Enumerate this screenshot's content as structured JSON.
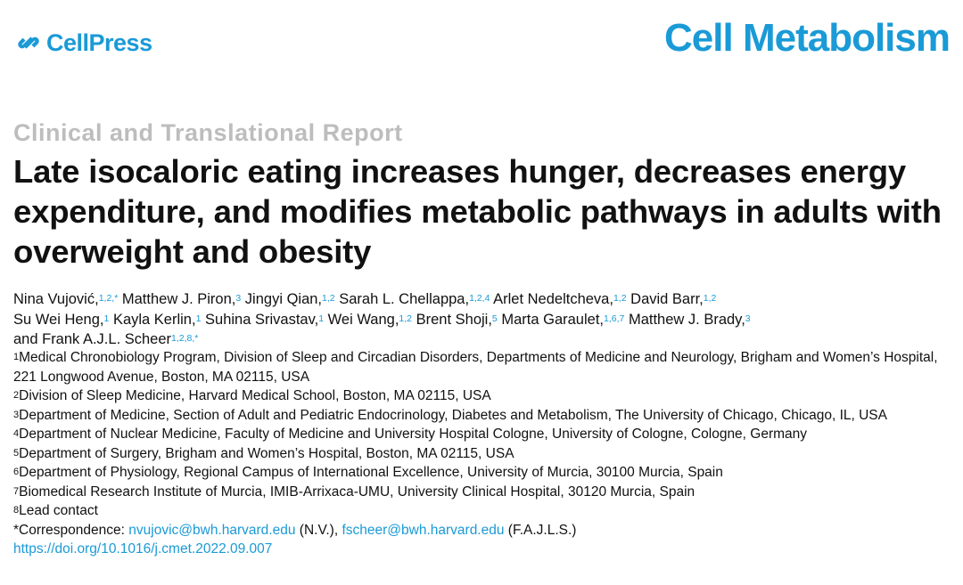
{
  "header": {
    "publisher": "CellPress",
    "journal": "Cell Metabolism",
    "brand_color": "#1a9ad6"
  },
  "article": {
    "category": "Clinical and Translational Report",
    "title": "Late isocaloric eating increases hunger, decreases energy expenditure, and modifies metabolic pathways in adults with overweight and obesity"
  },
  "authors": [
    {
      "name": "Nina Vujović,",
      "sup": "1,2,*"
    },
    {
      "name": "Matthew J. Piron,",
      "sup": "3"
    },
    {
      "name": "Jingyi Qian,",
      "sup": "1,2"
    },
    {
      "name": "Sarah L. Chellappa,",
      "sup": "1,2,4"
    },
    {
      "name": "Arlet Nedeltcheva,",
      "sup": "1,2"
    },
    {
      "name": "David Barr,",
      "sup": "1,2"
    },
    {
      "name": "Su Wei Heng,",
      "sup": "1"
    },
    {
      "name": "Kayla Kerlin,",
      "sup": "1"
    },
    {
      "name": "Suhina Srivastav,",
      "sup": "1"
    },
    {
      "name": "Wei Wang,",
      "sup": "1,2"
    },
    {
      "name": "Brent Shoji,",
      "sup": "5"
    },
    {
      "name": "Marta Garaulet,",
      "sup": "1,6,7"
    },
    {
      "name": "Matthew J. Brady,",
      "sup": "3"
    },
    {
      "name": "and Frank A.J.L. Scheer",
      "sup": "1,2,8,*"
    }
  ],
  "affiliations": [
    {
      "num": "1",
      "text": "Medical Chronobiology Program, Division of Sleep and Circadian Disorders, Departments of Medicine and Neurology, Brigham and Women’s Hospital, 221 Longwood Avenue, Boston, MA 02115, USA"
    },
    {
      "num": "2",
      "text": "Division of Sleep Medicine, Harvard Medical School, Boston, MA 02115, USA"
    },
    {
      "num": "3",
      "text": "Department of Medicine, Section of Adult and Pediatric Endocrinology, Diabetes and Metabolism, The University of Chicago, Chicago, IL, USA"
    },
    {
      "num": "4",
      "text": "Department of Nuclear Medicine, Faculty of Medicine and University Hospital Cologne, University of Cologne, Cologne, Germany"
    },
    {
      "num": "5",
      "text": "Department of Surgery, Brigham and Women’s Hospital, Boston, MA 02115, USA"
    },
    {
      "num": "6",
      "text": "Department of Physiology, Regional Campus of International Excellence, University of Murcia, 30100 Murcia, Spain"
    },
    {
      "num": "7",
      "text": "Biomedical Research Institute of Murcia, IMIB-Arrixaca-UMU, University Clinical Hospital, 30120 Murcia, Spain"
    },
    {
      "num": "8",
      "text": "Lead contact"
    }
  ],
  "correspondence": {
    "label": "*Correspondence:",
    "email1": "nvujovic@bwh.harvard.edu",
    "initials1": "(N.V.),",
    "email2": "fscheer@bwh.harvard.edu",
    "initials2": "(F.A.J.L.S.)"
  },
  "doi": "https://doi.org/10.1016/j.cmet.2022.09.007"
}
